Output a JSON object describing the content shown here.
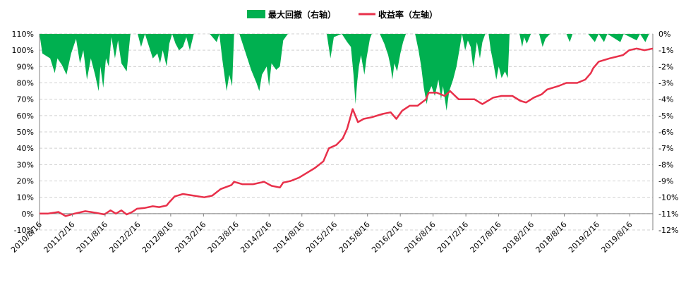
{
  "chart_data": {
    "type": "area+line",
    "legend": [
      {
        "label": "最大回撤（右轴）",
        "color": "#00b050",
        "kind": "area"
      },
      {
        "label": "收益率（左轴）",
        "color": "#e8304a",
        "kind": "line"
      }
    ],
    "legend_position": "top-center",
    "grid": true,
    "left_axis": {
      "ylim": [
        -10,
        110
      ],
      "ticks": [
        "-10%",
        "0%",
        "10%",
        "20%",
        "30%",
        "40%",
        "50%",
        "60%",
        "70%",
        "80%",
        "90%",
        "100%",
        "110%"
      ]
    },
    "right_axis": {
      "ylim": [
        -12,
        0
      ],
      "ticks": [
        "-12%",
        "-11%",
        "-10%",
        "-9%",
        "-8%",
        "-7%",
        "-6%",
        "-5%",
        "-4%",
        "-3%",
        "-2%",
        "-1%",
        "0%"
      ]
    },
    "x_labels": [
      "2010/8/16",
      "2011/2/16",
      "2011/8/16",
      "2012/2/16",
      "2012/8/16",
      "2013/2/16",
      "2013/8/16",
      "2014/2/16",
      "2014/8/16",
      "2015/2/16",
      "2015/8/16",
      "2016/2/16",
      "2016/8/16",
      "2017/2/16",
      "2017/8/16",
      "2018/2/16",
      "2018/8/16",
      "2019/2/16",
      "2019/8/16"
    ],
    "x_range": [
      "2010-08-16",
      "2020-01-31"
    ],
    "series": [
      {
        "name": "收益率（左轴）",
        "axis": "left",
        "points": [
          [
            "2010-08-16",
            0
          ],
          [
            "2010-10-01",
            0
          ],
          [
            "2010-12-01",
            1
          ],
          [
            "2011-01-10",
            -1.5
          ],
          [
            "2011-03-01",
            0
          ],
          [
            "2011-05-01",
            1.5
          ],
          [
            "2011-07-01",
            0.5
          ],
          [
            "2011-08-16",
            -0.5
          ],
          [
            "2011-09-20",
            2
          ],
          [
            "2011-10-20",
            0
          ],
          [
            "2011-11-20",
            2
          ],
          [
            "2011-12-20",
            -0.5
          ],
          [
            "2012-01-20",
            1
          ],
          [
            "2012-02-16",
            3
          ],
          [
            "2012-04-01",
            3.5
          ],
          [
            "2012-05-15",
            4.5
          ],
          [
            "2012-06-20",
            4
          ],
          [
            "2012-08-01",
            5
          ],
          [
            "2012-08-16",
            7
          ],
          [
            "2012-09-15",
            10.5
          ],
          [
            "2012-11-01",
            12
          ],
          [
            "2013-01-01",
            11
          ],
          [
            "2013-03-01",
            10
          ],
          [
            "2013-04-15",
            11
          ],
          [
            "2013-06-01",
            15
          ],
          [
            "2013-08-01",
            17.5
          ],
          [
            "2013-08-16",
            19.5
          ],
          [
            "2013-10-01",
            18
          ],
          [
            "2013-12-01",
            18
          ],
          [
            "2014-02-01",
            19.5
          ],
          [
            "2014-03-15",
            17
          ],
          [
            "2014-05-01",
            16
          ],
          [
            "2014-05-20",
            19
          ],
          [
            "2014-07-01",
            20
          ],
          [
            "2014-08-16",
            22
          ],
          [
            "2014-10-01",
            25
          ],
          [
            "2014-11-15",
            28
          ],
          [
            "2015-01-01",
            32
          ],
          [
            "2015-02-01",
            40
          ],
          [
            "2015-03-15",
            42
          ],
          [
            "2015-04-20",
            46
          ],
          [
            "2015-05-15",
            52
          ],
          [
            "2015-06-15",
            64
          ],
          [
            "2015-07-15",
            56
          ],
          [
            "2015-08-16",
            58
          ],
          [
            "2015-10-01",
            59
          ],
          [
            "2015-12-01",
            61
          ],
          [
            "2016-01-15",
            62
          ],
          [
            "2016-02-16",
            58
          ],
          [
            "2016-03-20",
            63
          ],
          [
            "2016-05-01",
            66
          ],
          [
            "2016-06-15",
            66
          ],
          [
            "2016-08-01",
            70
          ],
          [
            "2016-08-16",
            74
          ],
          [
            "2016-10-01",
            74
          ],
          [
            "2016-11-15",
            72
          ],
          [
            "2016-12-15",
            75
          ],
          [
            "2017-02-01",
            70
          ],
          [
            "2017-03-15",
            70
          ],
          [
            "2017-05-01",
            70
          ],
          [
            "2017-06-15",
            67
          ],
          [
            "2017-07-15",
            69
          ],
          [
            "2017-08-16",
            71
          ],
          [
            "2017-10-01",
            72
          ],
          [
            "2017-12-01",
            72
          ],
          [
            "2018-01-15",
            69
          ],
          [
            "2018-02-16",
            68
          ],
          [
            "2018-04-01",
            71
          ],
          [
            "2018-05-15",
            73
          ],
          [
            "2018-06-15",
            76
          ],
          [
            "2018-08-16",
            78
          ],
          [
            "2018-10-01",
            80
          ],
          [
            "2018-12-01",
            80
          ],
          [
            "2019-01-15",
            82
          ],
          [
            "2019-02-16",
            86
          ],
          [
            "2019-03-01",
            89
          ],
          [
            "2019-04-01",
            93
          ],
          [
            "2019-06-01",
            95
          ],
          [
            "2019-08-16",
            97
          ],
          [
            "2019-09-20",
            100
          ],
          [
            "2019-11-01",
            101
          ],
          [
            "2019-12-15",
            100
          ],
          [
            "2020-01-31",
            101
          ]
        ]
      },
      {
        "name": "最大回撤（右轴）",
        "axis": "right",
        "points": [
          [
            "2010-08-16",
            0
          ],
          [
            "2010-09-01",
            -1.2
          ],
          [
            "2010-10-15",
            -1.5
          ],
          [
            "2010-11-10",
            -2.4
          ],
          [
            "2010-11-25",
            -1.5
          ],
          [
            "2010-12-20",
            -1.9
          ],
          [
            "2011-01-15",
            -2.5
          ],
          [
            "2011-02-10",
            -1.2
          ],
          [
            "2011-03-10",
            -0.3
          ],
          [
            "2011-04-01",
            -1.8
          ],
          [
            "2011-04-20",
            -1.0
          ],
          [
            "2011-05-10",
            -2.8
          ],
          [
            "2011-06-01",
            -1.5
          ],
          [
            "2011-06-25",
            -2.5
          ],
          [
            "2011-07-15",
            -3.5
          ],
          [
            "2011-07-25",
            -2.0
          ],
          [
            "2011-08-10",
            -3.3
          ],
          [
            "2011-08-25",
            -1.5
          ],
          [
            "2011-09-10",
            -2.0
          ],
          [
            "2011-09-25",
            -0.2
          ],
          [
            "2011-10-15",
            -1.5
          ],
          [
            "2011-11-01",
            -0.4
          ],
          [
            "2011-11-20",
            -1.8
          ],
          [
            "2011-12-20",
            -2.3
          ],
          [
            "2012-01-10",
            0
          ],
          [
            "2012-02-20",
            0
          ],
          [
            "2012-03-10",
            -0.8
          ],
          [
            "2012-04-01",
            0
          ],
          [
            "2012-05-15",
            -1.5
          ],
          [
            "2012-06-10",
            -1.2
          ],
          [
            "2012-06-25",
            -1.8
          ],
          [
            "2012-07-10",
            -1.0
          ],
          [
            "2012-08-01",
            -2.0
          ],
          [
            "2012-08-16",
            -0.6
          ],
          [
            "2012-09-01",
            0
          ],
          [
            "2012-09-20",
            -0.6
          ],
          [
            "2012-10-10",
            -1.0
          ],
          [
            "2012-11-01",
            -0.8
          ],
          [
            "2012-11-20",
            -0.2
          ],
          [
            "2012-12-10",
            -1.0
          ],
          [
            "2013-01-01",
            0
          ],
          [
            "2013-04-01",
            0
          ],
          [
            "2013-05-10",
            -0.5
          ],
          [
            "2013-05-25",
            0
          ],
          [
            "2013-06-10",
            -1.5
          ],
          [
            "2013-06-25",
            -2.7
          ],
          [
            "2013-07-05",
            -3.5
          ],
          [
            "2013-07-20",
            -2.5
          ],
          [
            "2013-08-05",
            -3.2
          ],
          [
            "2013-08-16",
            0
          ],
          [
            "2013-09-15",
            0
          ],
          [
            "2013-10-15",
            -1.0
          ],
          [
            "2013-11-20",
            -2.2
          ],
          [
            "2013-12-20",
            -3.0
          ],
          [
            "2014-01-05",
            -3.5
          ],
          [
            "2014-01-20",
            -2.5
          ],
          [
            "2014-02-16",
            -2.0
          ],
          [
            "2014-03-01",
            -3.2
          ],
          [
            "2014-03-15",
            -1.8
          ],
          [
            "2014-04-10",
            -2.2
          ],
          [
            "2014-05-01",
            -2.0
          ],
          [
            "2014-05-20",
            -0.4
          ],
          [
            "2014-06-15",
            0
          ],
          [
            "2015-01-20",
            0
          ],
          [
            "2015-02-10",
            -1.5
          ],
          [
            "2015-03-01",
            -0.2
          ],
          [
            "2015-04-15",
            0
          ],
          [
            "2015-05-15",
            -0.5
          ],
          [
            "2015-06-05",
            -0.8
          ],
          [
            "2015-06-20",
            -2.5
          ],
          [
            "2015-07-01",
            -4.3
          ],
          [
            "2015-07-10",
            -3.0
          ],
          [
            "2015-07-20",
            -2.0
          ],
          [
            "2015-08-01",
            -1.3
          ],
          [
            "2015-08-20",
            -2.5
          ],
          [
            "2015-09-01",
            -1.5
          ],
          [
            "2015-09-20",
            -0.3
          ],
          [
            "2015-10-01",
            0
          ],
          [
            "2015-11-15",
            0
          ],
          [
            "2015-12-10",
            -0.6
          ],
          [
            "2016-01-01",
            -1.3
          ],
          [
            "2016-01-15",
            -2.0
          ],
          [
            "2016-01-25",
            -2.8
          ],
          [
            "2016-02-05",
            -1.8
          ],
          [
            "2016-02-20",
            -2.3
          ],
          [
            "2016-03-10",
            -1.2
          ],
          [
            "2016-03-25",
            -0.5
          ],
          [
            "2016-04-10",
            0
          ],
          [
            "2016-06-01",
            0
          ],
          [
            "2016-06-20",
            -1.0
          ],
          [
            "2016-07-05",
            -2.0
          ],
          [
            "2016-07-20",
            -3.3
          ],
          [
            "2016-08-05",
            -4.3
          ],
          [
            "2016-08-16",
            -3.6
          ],
          [
            "2016-09-01",
            -3.2
          ],
          [
            "2016-09-20",
            -3.8
          ],
          [
            "2016-10-10",
            -2.8
          ],
          [
            "2016-10-25",
            -4.0
          ],
          [
            "2016-11-05",
            -3.2
          ],
          [
            "2016-11-25",
            -4.7
          ],
          [
            "2016-12-10",
            -3.5
          ],
          [
            "2017-01-01",
            -2.8
          ],
          [
            "2017-01-20",
            -2.0
          ],
          [
            "2017-02-05",
            -1.0
          ],
          [
            "2017-02-20",
            0
          ],
          [
            "2017-03-10",
            -1.0
          ],
          [
            "2017-03-25",
            -0.4
          ],
          [
            "2017-04-10",
            -0.8
          ],
          [
            "2017-04-25",
            -2.1
          ],
          [
            "2017-05-15",
            -0.5
          ],
          [
            "2017-06-01",
            -1.5
          ],
          [
            "2017-06-15",
            -0.5
          ],
          [
            "2017-07-01",
            0
          ],
          [
            "2017-07-20",
            0
          ],
          [
            "2017-08-01",
            -1.0
          ],
          [
            "2017-08-16",
            -1.8
          ],
          [
            "2017-09-01",
            -2.8
          ],
          [
            "2017-09-15",
            -2.0
          ],
          [
            "2017-10-01",
            -2.7
          ],
          [
            "2017-10-20",
            -2.3
          ],
          [
            "2017-11-05",
            -2.7
          ],
          [
            "2017-11-15",
            0
          ],
          [
            "2018-01-10",
            0
          ],
          [
            "2018-01-25",
            -0.8
          ],
          [
            "2018-02-05",
            -0.2
          ],
          [
            "2018-02-20",
            -0.6
          ],
          [
            "2018-03-15",
            0
          ],
          [
            "2018-05-01",
            0
          ],
          [
            "2018-05-20",
            -0.8
          ],
          [
            "2018-06-05",
            -0.3
          ],
          [
            "2018-07-01",
            0
          ],
          [
            "2018-10-01",
            0
          ],
          [
            "2018-10-20",
            -0.5
          ],
          [
            "2018-11-05",
            0
          ],
          [
            "2019-02-01",
            0
          ],
          [
            "2019-03-10",
            -0.5
          ],
          [
            "2019-04-01",
            0
          ],
          [
            "2019-05-01",
            -0.5
          ],
          [
            "2019-05-20",
            0
          ],
          [
            "2019-08-01",
            -0.5
          ],
          [
            "2019-08-20",
            0
          ],
          [
            "2019-11-01",
            -0.4
          ],
          [
            "2019-11-20",
            0
          ],
          [
            "2019-12-20",
            -0.5
          ],
          [
            "2020-01-10",
            0
          ],
          [
            "2020-01-31",
            0
          ]
        ]
      }
    ]
  }
}
